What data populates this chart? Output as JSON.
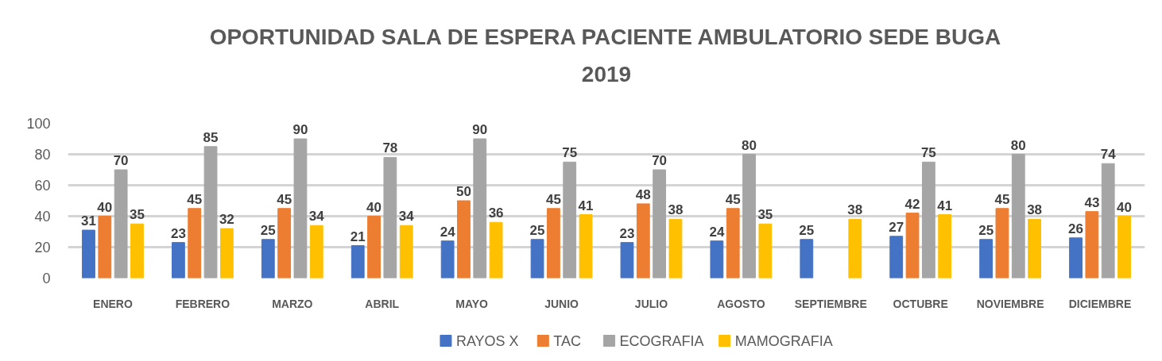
{
  "chart_data": {
    "type": "bar",
    "title": "OPORTUNIDAD SALA DE ESPERA PACIENTE AMBULATORIO SEDE BUGA 2019",
    "categories": [
      "ENERO",
      "FEBRERO",
      "MARZO",
      "ABRIL",
      "MAYO",
      "JUNIO",
      "JULIO",
      "AGOSTO",
      "SEPTIEMBRE",
      "OCTUBRE",
      "NOVIEMBRE",
      "DICIEMBRE"
    ],
    "series": [
      {
        "name": "RAYOS X",
        "color": "#4472c4",
        "values": [
          31,
          23,
          25,
          21,
          24,
          25,
          23,
          24,
          25,
          27,
          25,
          26
        ]
      },
      {
        "name": "TAC",
        "color": "#ed7d31",
        "values": [
          40,
          45,
          45,
          40,
          50,
          45,
          48,
          45,
          null,
          42,
          45,
          43
        ]
      },
      {
        "name": "ECOGRAFIA",
        "color": "#a5a5a5",
        "values": [
          70,
          85,
          90,
          78,
          90,
          75,
          70,
          80,
          null,
          75,
          80,
          74
        ]
      },
      {
        "name": "MAMOGRAFIA",
        "color": "#ffc000",
        "values": [
          35,
          32,
          34,
          34,
          36,
          41,
          38,
          35,
          38,
          41,
          38,
          40
        ]
      }
    ],
    "ylim": [
      0,
      100
    ],
    "yticks": [
      0,
      20,
      40,
      60,
      80,
      100
    ],
    "grid": "y",
    "legend": "bottom",
    "data_labels": true
  }
}
